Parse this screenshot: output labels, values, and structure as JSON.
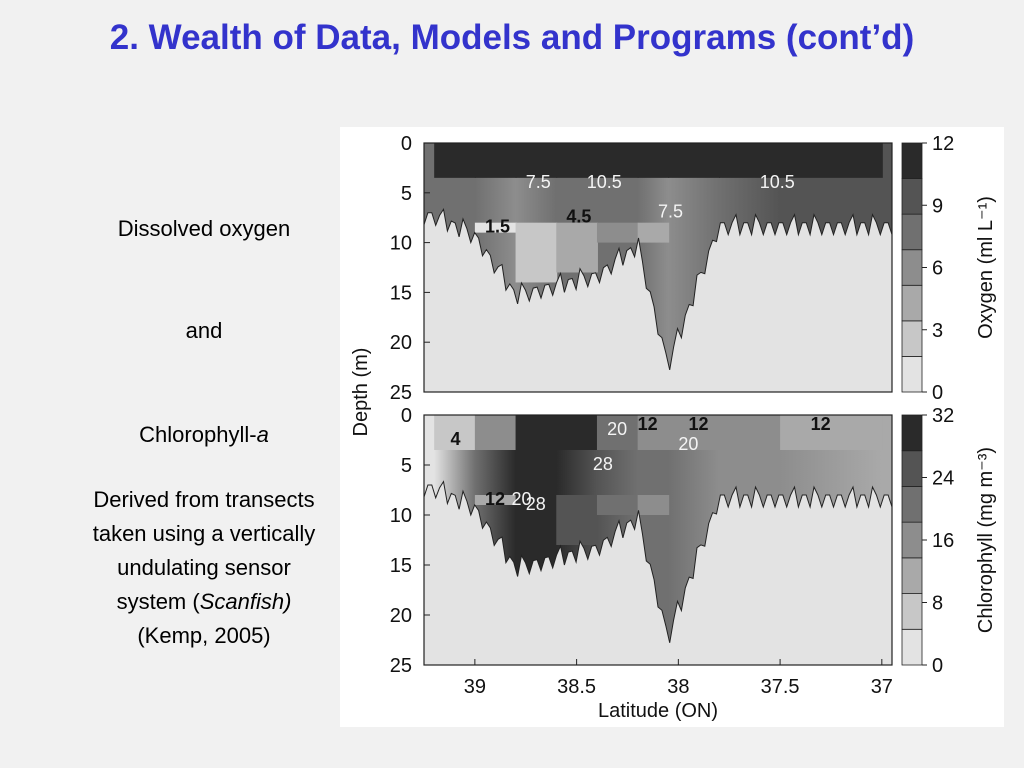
{
  "title": "2. Wealth of Data, Models and Programs (cont’d)",
  "sidebar": {
    "line1": "Dissolved oxygen",
    "line2": "and",
    "line3_prefix": "Chlorophyll-",
    "line3_italic": "a",
    "desc1": "Derived from transects",
    "desc2": "taken using a vertically",
    "desc3": "undulating sensor",
    "desc4_prefix": "system (",
    "desc4_italic": "Scanfish)",
    "desc5": "(Kemp, 2005)"
  },
  "colors": {
    "title": "#3333cc",
    "levels": [
      "#e3e3e3",
      "#c7c7c7",
      "#a9a9a9",
      "#8d8d8d",
      "#707070",
      "#545454",
      "#2a2a2a"
    ]
  },
  "chart_data": [
    {
      "type": "heatmap",
      "variable": "Oxygen",
      "colorbar_label": "Oxygen (ml L⁻¹)",
      "colorbar_ticks": [
        "0",
        "3",
        "6",
        "9",
        "12"
      ],
      "levels": [
        0,
        1.5,
        3,
        4.5,
        6,
        7.5,
        9,
        10.5,
        12
      ],
      "contour_labels": [
        "7.5",
        "10.5",
        "10.5",
        "7.5",
        "1.5",
        "4.5"
      ],
      "x_ticks": [
        "39",
        "38.5",
        "38",
        "37.5",
        "37"
      ],
      "y_ticks": [
        "0",
        "5",
        "10",
        "15",
        "20",
        "25"
      ],
      "ylabel": "Depth (m)",
      "xlim": [
        39.25,
        36.95
      ],
      "ylim": [
        0,
        25
      ],
      "profile": [
        {
          "lat": 39.2,
          "bottom": 7,
          "surface": 10.5,
          "mid": 7.5,
          "deep": 1.5
        },
        {
          "lat": 39.0,
          "bottom": 9,
          "surface": 10.5,
          "mid": 7.5,
          "deep": 1.5
        },
        {
          "lat": 38.8,
          "bottom": 15,
          "surface": 10.5,
          "mid": 6,
          "deep": 3
        },
        {
          "lat": 38.6,
          "bottom": 14,
          "surface": 10.5,
          "mid": 7.5,
          "deep": 4.5
        },
        {
          "lat": 38.4,
          "bottom": 13,
          "surface": 10.5,
          "mid": 7.5,
          "deep": 6
        },
        {
          "lat": 38.2,
          "bottom": 10,
          "surface": 10.5,
          "mid": 7.5,
          "deep": 4.5
        },
        {
          "lat": 38.05,
          "bottom": 22,
          "surface": 10.5,
          "mid": 6,
          "deep": 1.5
        },
        {
          "lat": 37.8,
          "bottom": 8,
          "surface": 10.5,
          "mid": 7.5,
          "deep": 7.5
        },
        {
          "lat": 37.5,
          "bottom": 8,
          "surface": 10.5,
          "mid": 9,
          "deep": 7.5
        },
        {
          "lat": 37.0,
          "bottom": 8,
          "surface": 10.5,
          "mid": 9,
          "deep": 7.5
        }
      ]
    },
    {
      "type": "heatmap",
      "variable": "Chlorophyll",
      "colorbar_label": "Chlorophyll (mg m⁻³)",
      "colorbar_ticks": [
        "0",
        "8",
        "16",
        "24",
        "32"
      ],
      "levels": [
        0,
        4,
        8,
        12,
        16,
        20,
        24,
        28,
        32
      ],
      "contour_labels": [
        "4",
        "20",
        "12",
        "12",
        "12",
        "20",
        "28",
        "12",
        "20",
        "28"
      ],
      "x_ticks": [
        "39",
        "38.5",
        "38",
        "37.5",
        "37"
      ],
      "y_ticks": [
        "0",
        "5",
        "10",
        "15",
        "20",
        "25"
      ],
      "xlabel": "Latitude (ON)",
      "ylabel": "Depth (m)",
      "xlim": [
        39.25,
        36.95
      ],
      "ylim": [
        0,
        25
      ],
      "profile": [
        {
          "lat": 39.2,
          "bottom": 7,
          "surface": 8,
          "mid": 4,
          "deep": 4
        },
        {
          "lat": 39.0,
          "bottom": 9,
          "surface": 16,
          "mid": 20,
          "deep": 12
        },
        {
          "lat": 38.8,
          "bottom": 15,
          "surface": 32,
          "mid": 32,
          "deep": 28
        },
        {
          "lat": 38.6,
          "bottom": 14,
          "surface": 28,
          "mid": 32,
          "deep": 24
        },
        {
          "lat": 38.4,
          "bottom": 13,
          "surface": 20,
          "mid": 24,
          "deep": 20
        },
        {
          "lat": 38.2,
          "bottom": 10,
          "surface": 16,
          "mid": 20,
          "deep": 16
        },
        {
          "lat": 38.05,
          "bottom": 22,
          "surface": 16,
          "mid": 20,
          "deep": 12
        },
        {
          "lat": 37.8,
          "bottom": 8,
          "surface": 16,
          "mid": 16,
          "deep": 12
        },
        {
          "lat": 37.5,
          "bottom": 8,
          "surface": 12,
          "mid": 16,
          "deep": 12
        },
        {
          "lat": 37.0,
          "bottom": 8,
          "surface": 12,
          "mid": 12,
          "deep": 12
        }
      ]
    }
  ]
}
